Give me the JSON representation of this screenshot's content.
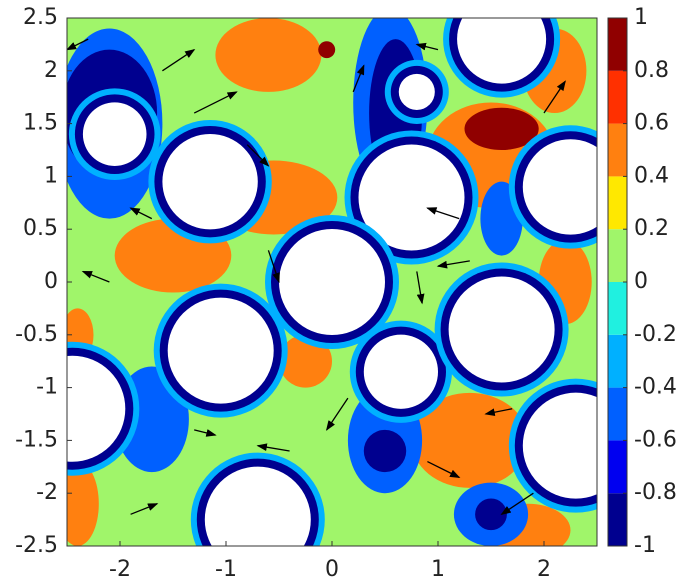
{
  "chart_data": {
    "type": "contour",
    "xlim": [
      -2.5,
      2.5
    ],
    "ylim": [
      -2.5,
      2.5
    ],
    "xticks": [
      -2,
      -1,
      0,
      1,
      2
    ],
    "yticks": [
      -2.5,
      -2,
      -1.5,
      -1,
      -0.5,
      0,
      0.5,
      1,
      1.5,
      2,
      2.5
    ],
    "clim": [
      -1,
      1
    ],
    "cticks": [
      -1,
      -0.8,
      -0.6,
      -0.4,
      -0.2,
      0,
      0.2,
      0.4,
      0.6,
      0.8,
      1
    ],
    "colors": [
      "#00008f",
      "#0000f0",
      "#0060ff",
      "#00b0ff",
      "#20f0e0",
      "#a0f56a",
      "#ffe800",
      "#ff8010",
      "#ff3000",
      "#900000"
    ],
    "background_level": 0.1,
    "regions": [
      {
        "x": -0.6,
        "y": 2.15,
        "rx": 0.5,
        "ry": 0.35,
        "level": 0.5
      },
      {
        "x": -0.55,
        "y": 0.8,
        "rx": 0.6,
        "ry": 0.35,
        "level": 0.5
      },
      {
        "x": -1.5,
        "y": 0.25,
        "rx": 0.55,
        "ry": 0.35,
        "level": 0.5
      },
      {
        "x": 1.5,
        "y": 1.2,
        "rx": 0.6,
        "ry": 0.5,
        "level": 0.5
      },
      {
        "x": 2.1,
        "y": 2.0,
        "rx": 0.3,
        "ry": 0.4,
        "level": 0.5
      },
      {
        "x": 2.2,
        "y": 0.0,
        "rx": 0.25,
        "ry": 0.4,
        "level": 0.5
      },
      {
        "x": 1.3,
        "y": -1.5,
        "rx": 0.55,
        "ry": 0.45,
        "level": 0.5
      },
      {
        "x": -2.4,
        "y": -2.1,
        "rx": 0.2,
        "ry": 0.4,
        "level": 0.5
      },
      {
        "x": -0.25,
        "y": -0.75,
        "rx": 0.25,
        "ry": 0.25,
        "level": 0.5
      },
      {
        "x": 1.85,
        "y": -2.35,
        "rx": 0.4,
        "ry": 0.25,
        "level": 0.5
      },
      {
        "x": -2.4,
        "y": -0.5,
        "rx": 0.15,
        "ry": 0.25,
        "level": 0.5
      },
      {
        "x": 1.6,
        "y": 1.45,
        "rx": 0.35,
        "ry": 0.2,
        "level": 0.9
      },
      {
        "x": -0.05,
        "y": 2.2,
        "rx": 0.08,
        "ry": 0.08,
        "level": 0.9
      },
      {
        "x": -2.1,
        "y": 1.5,
        "rx": 0.5,
        "ry": 0.9,
        "level": -0.5
      },
      {
        "x": -2.1,
        "y": 1.6,
        "rx": 0.45,
        "ry": 0.6,
        "level": -0.9
      },
      {
        "x": 0.55,
        "y": 1.7,
        "rx": 0.35,
        "ry": 0.9,
        "level": -0.5
      },
      {
        "x": 0.6,
        "y": 1.6,
        "rx": 0.25,
        "ry": 0.7,
        "level": -0.9
      },
      {
        "x": -1.7,
        "y": -1.3,
        "rx": 0.35,
        "ry": 0.5,
        "level": -0.5
      },
      {
        "x": 0.5,
        "y": -1.5,
        "rx": 0.35,
        "ry": 0.5,
        "level": -0.5
      },
      {
        "x": 0.5,
        "y": -1.6,
        "rx": 0.2,
        "ry": 0.2,
        "level": -0.9
      },
      {
        "x": 1.5,
        "y": -2.2,
        "rx": 0.35,
        "ry": 0.3,
        "level": -0.5
      },
      {
        "x": 1.5,
        "y": -2.2,
        "rx": 0.15,
        "ry": 0.15,
        "level": -0.9
      },
      {
        "x": 1.6,
        "y": 0.6,
        "rx": 0.2,
        "ry": 0.35,
        "level": -0.5
      }
    ],
    "obstacles": [
      {
        "x": -2.05,
        "y": 1.4,
        "r": 0.3
      },
      {
        "x": -1.15,
        "y": 0.95,
        "r": 0.45
      },
      {
        "x": 0.75,
        "y": 0.8,
        "r": 0.5
      },
      {
        "x": 1.6,
        "y": 2.3,
        "r": 0.42
      },
      {
        "x": 0.8,
        "y": 1.8,
        "r": 0.17
      },
      {
        "x": 2.25,
        "y": 0.9,
        "r": 0.45
      },
      {
        "x": 0.0,
        "y": 0.0,
        "r": 0.5
      },
      {
        "x": -1.05,
        "y": -0.65,
        "r": 0.5
      },
      {
        "x": 0.65,
        "y": -0.85,
        "r": 0.35
      },
      {
        "x": 1.6,
        "y": -0.45,
        "r": 0.5
      },
      {
        "x": -2.45,
        "y": -1.2,
        "r": 0.5
      },
      {
        "x": 2.3,
        "y": -1.55,
        "r": 0.5
      },
      {
        "x": -0.7,
        "y": -2.25,
        "r": 0.5
      }
    ],
    "arrows": [
      {
        "x": -2.3,
        "y": 2.3,
        "u": -0.2,
        "v": -0.1
      },
      {
        "x": -1.6,
        "y": 2.0,
        "u": 0.3,
        "v": 0.2
      },
      {
        "x": -1.3,
        "y": 1.6,
        "u": 0.4,
        "v": 0.2
      },
      {
        "x": -0.8,
        "y": 1.3,
        "u": 0.2,
        "v": -0.2
      },
      {
        "x": 0.2,
        "y": 1.8,
        "u": 0.1,
        "v": 0.25
      },
      {
        "x": 1.2,
        "y": 0.6,
        "u": -0.3,
        "v": 0.1
      },
      {
        "x": 1.3,
        "y": 0.2,
        "u": -0.3,
        "v": -0.05
      },
      {
        "x": -1.7,
        "y": 0.6,
        "u": -0.2,
        "v": 0.1
      },
      {
        "x": -2.1,
        "y": 0.0,
        "u": -0.25,
        "v": 0.1
      },
      {
        "x": -0.6,
        "y": 0.3,
        "u": 0.1,
        "v": -0.3
      },
      {
        "x": 0.8,
        "y": 0.1,
        "u": 0.05,
        "v": -0.3
      },
      {
        "x": 0.15,
        "y": -1.1,
        "u": -0.2,
        "v": -0.3
      },
      {
        "x": -1.3,
        "y": -1.4,
        "u": 0.2,
        "v": -0.05
      },
      {
        "x": -0.4,
        "y": -1.6,
        "u": -0.3,
        "v": 0.05
      },
      {
        "x": 0.9,
        "y": -1.7,
        "u": 0.3,
        "v": -0.15
      },
      {
        "x": 1.7,
        "y": -1.2,
        "u": -0.25,
        "v": -0.05
      },
      {
        "x": 1.9,
        "y": -2.0,
        "u": -0.3,
        "v": -0.2
      },
      {
        "x": -1.9,
        "y": -2.2,
        "u": 0.25,
        "v": 0.1
      },
      {
        "x": 2.0,
        "y": 1.6,
        "u": 0.2,
        "v": 0.3
      },
      {
        "x": 1.0,
        "y": 2.2,
        "u": -0.2,
        "v": 0.05
      }
    ]
  }
}
